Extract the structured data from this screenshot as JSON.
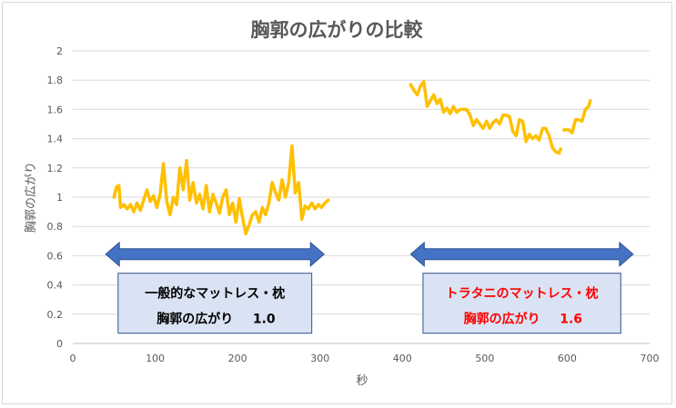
{
  "chart_data": {
    "type": "line",
    "title": "胸郭の広がりの比較",
    "xlabel": "秒",
    "ylabel": "胸郭の広がり",
    "xlim": [
      0,
      700
    ],
    "ylim": [
      0,
      2
    ],
    "x_ticks": [
      "0",
      "100",
      "200",
      "300",
      "400",
      "500",
      "600",
      "700"
    ],
    "y_ticks": [
      "0",
      "0.2",
      "0.4",
      "0.6",
      "0.8",
      "1",
      "1.2",
      "1.4",
      "1.6",
      "1.8",
      "2"
    ],
    "grid": "horizontal",
    "line_color": "#ffc000",
    "series": [
      {
        "points": [
          [
            50,
            1.0
          ],
          [
            53,
            1.07
          ],
          [
            56,
            1.08
          ],
          [
            58,
            0.93
          ],
          [
            62,
            0.95
          ],
          [
            66,
            0.92
          ],
          [
            70,
            0.95
          ],
          [
            74,
            0.9
          ],
          [
            78,
            0.96
          ],
          [
            82,
            0.91
          ],
          [
            86,
            0.98
          ],
          [
            90,
            1.05
          ],
          [
            94,
            0.97
          ],
          [
            98,
            1.01
          ],
          [
            102,
            0.93
          ],
          [
            106,
            1.02
          ],
          [
            110,
            1.23
          ],
          [
            114,
            0.97
          ],
          [
            118,
            0.88
          ],
          [
            122,
            1.0
          ],
          [
            126,
            0.95
          ],
          [
            130,
            1.2
          ],
          [
            134,
            1.05
          ],
          [
            138,
            1.25
          ],
          [
            142,
            0.98
          ],
          [
            146,
            1.1
          ],
          [
            150,
            0.96
          ],
          [
            154,
            1.02
          ],
          [
            158,
            0.92
          ],
          [
            162,
            1.08
          ],
          [
            166,
            0.9
          ],
          [
            170,
            1.02
          ],
          [
            174,
            0.96
          ],
          [
            178,
            0.89
          ],
          [
            182,
            1.0
          ],
          [
            186,
            1.05
          ],
          [
            190,
            0.88
          ],
          [
            194,
            0.96
          ],
          [
            198,
            0.83
          ],
          [
            202,
            0.99
          ],
          [
            206,
            0.86
          ],
          [
            210,
            0.75
          ],
          [
            214,
            0.81
          ],
          [
            218,
            0.88
          ],
          [
            222,
            0.9
          ],
          [
            226,
            0.83
          ],
          [
            230,
            0.93
          ],
          [
            234,
            0.88
          ],
          [
            238,
            0.96
          ],
          [
            242,
            1.1
          ],
          [
            246,
            1.03
          ],
          [
            250,
            0.98
          ],
          [
            254,
            1.12
          ],
          [
            258,
            1.0
          ],
          [
            262,
            1.1
          ],
          [
            266,
            1.35
          ],
          [
            270,
            1.03
          ],
          [
            274,
            1.1
          ],
          [
            278,
            0.85
          ],
          [
            282,
            0.94
          ],
          [
            286,
            0.92
          ],
          [
            290,
            0.96
          ],
          [
            294,
            0.92
          ],
          [
            298,
            0.95
          ],
          [
            302,
            0.93
          ],
          [
            306,
            0.96
          ],
          [
            310,
            0.98
          ]
        ]
      },
      {
        "points": [
          [
            410,
            1.77
          ],
          [
            414,
            1.73
          ],
          [
            418,
            1.7
          ],
          [
            422,
            1.76
          ],
          [
            426,
            1.79
          ],
          [
            430,
            1.62
          ],
          [
            434,
            1.66
          ],
          [
            438,
            1.7
          ],
          [
            442,
            1.64
          ],
          [
            446,
            1.67
          ],
          [
            450,
            1.58
          ],
          [
            454,
            1.61
          ],
          [
            458,
            1.57
          ],
          [
            462,
            1.62
          ],
          [
            466,
            1.58
          ],
          [
            470,
            1.6
          ],
          [
            474,
            1.6
          ],
          [
            478,
            1.6
          ],
          [
            482,
            1.56
          ],
          [
            486,
            1.49
          ],
          [
            490,
            1.53
          ],
          [
            494,
            1.5
          ],
          [
            498,
            1.47
          ],
          [
            502,
            1.52
          ],
          [
            506,
            1.47
          ],
          [
            510,
            1.51
          ],
          [
            514,
            1.53
          ],
          [
            518,
            1.5
          ],
          [
            522,
            1.56
          ],
          [
            526,
            1.56
          ],
          [
            530,
            1.55
          ],
          [
            534,
            1.45
          ],
          [
            538,
            1.42
          ],
          [
            542,
            1.53
          ],
          [
            546,
            1.52
          ],
          [
            550,
            1.38
          ],
          [
            554,
            1.43
          ],
          [
            558,
            1.4
          ],
          [
            562,
            1.42
          ],
          [
            566,
            1.39
          ],
          [
            570,
            1.47
          ],
          [
            574,
            1.47
          ],
          [
            578,
            1.42
          ],
          [
            582,
            1.34
          ],
          [
            586,
            1.31
          ],
          [
            590,
            1.3
          ],
          [
            592,
            1.33
          ]
        ]
      },
      {
        "points": [
          [
            596,
            1.46
          ],
          [
            602,
            1.46
          ],
          [
            606,
            1.44
          ],
          [
            610,
            1.53
          ],
          [
            614,
            1.53
          ],
          [
            618,
            1.52
          ],
          [
            622,
            1.6
          ],
          [
            626,
            1.62
          ],
          [
            628,
            1.66
          ]
        ]
      }
    ],
    "annotations": [
      {
        "x_range": [
          40,
          305
        ],
        "y_arrow": 0.61,
        "line1": "一般的なマットレス・枕",
        "line2": "胸郭の広がり",
        "value": "1.0",
        "text_color": "#000000"
      },
      {
        "x_range": [
          410,
          680
        ],
        "y_arrow": 0.61,
        "line1": "トラタニのマットレス・枕",
        "line2": "胸郭の広がり",
        "value": "1.6",
        "text_color": "#ff0000"
      }
    ],
    "arrow_color": "#4472c4",
    "box_fill": "#dae3f3"
  }
}
